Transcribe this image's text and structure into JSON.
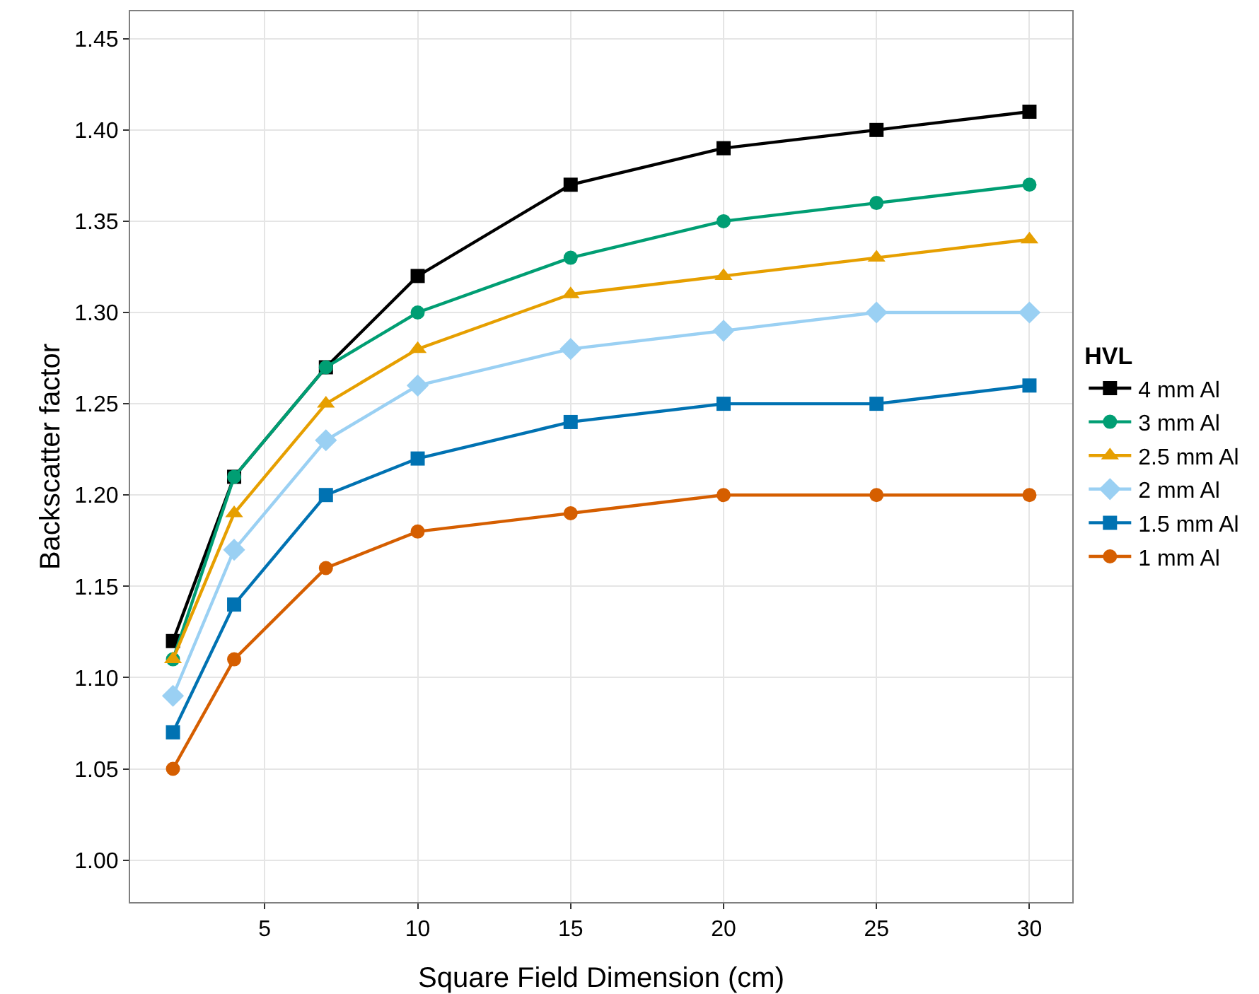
{
  "chart_data": {
    "type": "line",
    "xlabel": "Square Field Dimension (cm)",
    "ylabel": "Backscatter factor",
    "legend_title": "HVL",
    "legend": "right",
    "grid": true,
    "line_style": "solid",
    "x": [
      2,
      4,
      7,
      10,
      15,
      20,
      25,
      30
    ],
    "xlim": [
      0.6,
      31.4
    ],
    "xticks": [
      5,
      10,
      15,
      20,
      25,
      30
    ],
    "ylim": [
      0.977,
      1.465
    ],
    "yticks": [
      {
        "value": 1.0,
        "label": "1.00"
      },
      {
        "value": 1.05,
        "label": "1.05"
      },
      {
        "value": 1.1,
        "label": "1.10"
      },
      {
        "value": 1.15,
        "label": "1.15"
      },
      {
        "value": 1.2,
        "label": "1.20"
      },
      {
        "value": 1.25,
        "label": "1.25"
      },
      {
        "value": 1.3,
        "label": "1.30"
      },
      {
        "value": 1.35,
        "label": "1.35"
      },
      {
        "value": 1.4,
        "label": "1.40"
      },
      {
        "value": 1.45,
        "label": "1.45"
      }
    ],
    "series": [
      {
        "name": "4 mm Al",
        "color": "#000000",
        "marker": "square",
        "values": [
          1.12,
          1.21,
          1.27,
          1.32,
          1.37,
          1.39,
          1.4,
          1.41
        ]
      },
      {
        "name": "3 mm Al",
        "color": "#009e73",
        "marker": "circle",
        "values": [
          1.11,
          1.21,
          1.27,
          1.3,
          1.33,
          1.35,
          1.36,
          1.37
        ]
      },
      {
        "name": "2.5 mm Al",
        "color": "#e69f00",
        "marker": "triangle",
        "values": [
          1.11,
          1.19,
          1.25,
          1.28,
          1.31,
          1.32,
          1.33,
          1.34
        ]
      },
      {
        "name": "2 mm Al",
        "color": "#9ad0f3",
        "marker": "diamond",
        "values": [
          1.09,
          1.17,
          1.23,
          1.26,
          1.28,
          1.29,
          1.3,
          1.3
        ]
      },
      {
        "name": "1.5 mm Al",
        "color": "#0072b2",
        "marker": "square",
        "values": [
          1.07,
          1.14,
          1.2,
          1.22,
          1.24,
          1.25,
          1.25,
          1.26
        ]
      },
      {
        "name": "1 mm Al",
        "color": "#d55e00",
        "marker": "circle",
        "values": [
          1.05,
          1.11,
          1.16,
          1.18,
          1.19,
          1.2,
          1.2,
          1.2
        ]
      }
    ]
  }
}
